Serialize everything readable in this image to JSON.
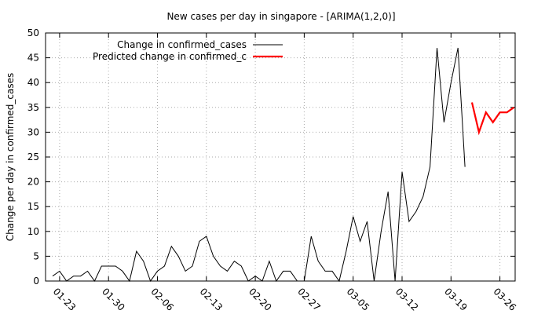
{
  "chart_data": {
    "type": "line",
    "title": "New cases per day in singapore -  [ARIMA(1,2,0)]",
    "xlabel": "",
    "ylabel": "Change per day in confirmed_cases",
    "xlim": [
      0,
      66
    ],
    "ylim": [
      0,
      50
    ],
    "yticks": [
      0,
      5,
      10,
      15,
      20,
      25,
      30,
      35,
      40,
      45,
      50
    ],
    "xticks": [
      {
        "x": 1,
        "label": "01-23"
      },
      {
        "x": 8,
        "label": "01-30"
      },
      {
        "x": 15,
        "label": "02-06"
      },
      {
        "x": 22,
        "label": "02-13"
      },
      {
        "x": 29,
        "label": "02-20"
      },
      {
        "x": 36,
        "label": "02-27"
      },
      {
        "x": 43,
        "label": "03-05"
      },
      {
        "x": 50,
        "label": "03-12"
      },
      {
        "x": 57,
        "label": "03-19"
      },
      {
        "x": 64,
        "label": "03-26"
      }
    ],
    "grid": true,
    "legend_position": "top-left",
    "series": [
      {
        "name": "Change in confirmed_cases",
        "color": "#000000",
        "x": [
          0,
          1,
          2,
          3,
          4,
          5,
          6,
          7,
          8,
          9,
          10,
          11,
          12,
          13,
          14,
          15,
          16,
          17,
          18,
          19,
          20,
          21,
          22,
          23,
          24,
          25,
          26,
          27,
          28,
          29,
          30,
          31,
          32,
          33,
          34,
          35,
          36,
          37,
          38,
          39,
          40,
          41,
          42,
          43,
          44,
          45,
          46,
          47,
          48,
          49,
          50,
          51,
          52,
          53,
          54,
          55,
          56,
          57,
          58,
          59
        ],
        "values": [
          1,
          2,
          0,
          1,
          1,
          2,
          0,
          3,
          3,
          3,
          2,
          0,
          6,
          4,
          0,
          2,
          3,
          7,
          5,
          2,
          3,
          8,
          9,
          5,
          3,
          2,
          4,
          3,
          0,
          1,
          0,
          4,
          0,
          2,
          2,
          0,
          0,
          9,
          4,
          2,
          2,
          0,
          6,
          13,
          8,
          12,
          0,
          10,
          18,
          0,
          22,
          12,
          14,
          17,
          23,
          47,
          32,
          40,
          47,
          23
        ]
      },
      {
        "name": "Predicted change in confirmed_c",
        "color": "#ff0000",
        "x": [
          60,
          61,
          62,
          63,
          64,
          65,
          66
        ],
        "values": [
          36,
          30,
          34,
          32,
          34,
          34,
          35
        ]
      }
    ]
  }
}
